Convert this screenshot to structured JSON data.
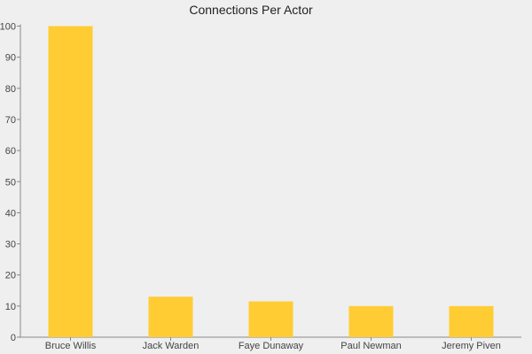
{
  "chart_data": {
    "type": "bar",
    "title": "Connections Per Actor",
    "xlabel": "",
    "ylabel": "",
    "categories": [
      "Bruce Willis",
      "Jack Warden",
      "Faye Dunaway",
      "Paul Newman",
      "Jeremy Piven"
    ],
    "values": [
      100,
      13,
      11.5,
      10,
      10
    ],
    "ylim": [
      0,
      100
    ],
    "yticks": [
      0,
      10,
      20,
      30,
      40,
      50,
      60,
      70,
      80,
      90,
      100
    ],
    "grid": false,
    "bar_color": "#ffcc33",
    "background_color": "#efefef"
  }
}
